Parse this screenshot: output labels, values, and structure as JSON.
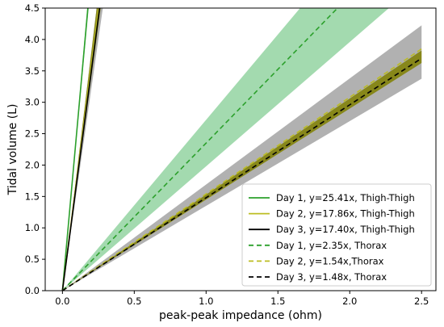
{
  "chart_data": {
    "type": "line",
    "title": "",
    "xlabel": "peak-peak impedance (ohm)",
    "ylabel": "Tidal volume (L)",
    "xlim": [
      -0.12,
      2.6
    ],
    "ylim": [
      0,
      4.5
    ],
    "xticks": [
      0.0,
      0.5,
      1.0,
      1.5,
      2.0,
      2.5
    ],
    "xtick_labels": [
      "0.0",
      "0.5",
      "1.0",
      "1.5",
      "2.0",
      "2.5"
    ],
    "yticks": [
      0.0,
      0.5,
      1.0,
      1.5,
      2.0,
      2.5,
      3.0,
      3.5,
      4.0,
      4.5
    ],
    "ytick_labels": [
      "0.0",
      "0.5",
      "1.0",
      "1.5",
      "2.0",
      "2.5",
      "3.0",
      "3.5",
      "4.0",
      "4.5"
    ],
    "grid": false,
    "legend_position": "bottom-right",
    "series": [
      {
        "name": "Day 1, y=25.41x, Thigh-Thigh",
        "slope": 25.41,
        "color": "#2ca02c",
        "dash": "solid",
        "band": [
          24.6,
          26.1
        ],
        "band_color": "#2ca02c",
        "band_opacity": 0.45
      },
      {
        "name": "Day 2, y=17.86x, Thigh-Thigh",
        "slope": 17.86,
        "color": "#bcbd22",
        "dash": "solid",
        "band": [
          16.9,
          18.9
        ],
        "band_color": "#808000",
        "band_opacity": 0.8
      },
      {
        "name": "Day 3, y=17.40x, Thigh-Thigh",
        "slope": 17.4,
        "color": "#000000",
        "dash": "solid",
        "band": [
          16.0,
          18.9
        ],
        "band_color": "#9e9e9e",
        "band_opacity": 0.8
      },
      {
        "name": "Day 1, y=2.35x, Thorax",
        "slope": 2.35,
        "color": "#2ca02c",
        "dash": "dashed",
        "band": [
          1.98,
          2.72
        ],
        "band_color": "#66c27a",
        "band_opacity": 0.6
      },
      {
        "name": "Day 2, y=1.54x,Thorax",
        "slope": 1.54,
        "color": "#bcbd22",
        "dash": "dashed",
        "band": [
          1.45,
          1.53
        ],
        "band_color": "#808000",
        "band_opacity": 0.85
      },
      {
        "name": "Day 3, y=1.48x, Thorax",
        "slope": 1.48,
        "color": "#000000",
        "dash": "dashed",
        "band": [
          1.35,
          1.69
        ],
        "band_color": "#9e9e9e",
        "band_opacity": 0.8
      }
    ],
    "x_range": [
      0,
      2.5
    ]
  }
}
